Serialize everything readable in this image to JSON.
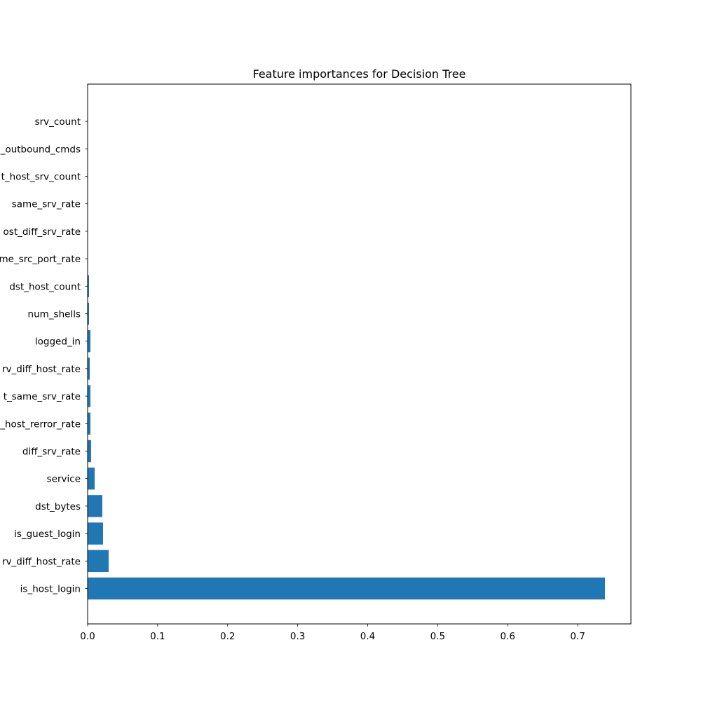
{
  "chart_data": {
    "type": "bar",
    "orientation": "horizontal",
    "title": "Feature importances for Decision Tree",
    "xlabel": "",
    "ylabel": "",
    "xlim": [
      0,
      0.776
    ],
    "xticks": [
      "0.0",
      "0.1",
      "0.2",
      "0.3",
      "0.4",
      "0.5",
      "0.6",
      "0.7"
    ],
    "grid": false,
    "bar_color": "#1f77b4",
    "categories": [
      "is_host_login",
      "srv_diff_host_rate",
      "is_guest_login",
      "dst_bytes",
      "service",
      "diff_srv_rate",
      "dst_host_rerror_rate",
      "dst_host_same_srv_rate",
      "dst_host_srv_diff_host_rate",
      "logged_in",
      "num_shells",
      "dst_host_count",
      "dst_host_same_src_port_rate",
      "dst_host_diff_srv_rate",
      "same_srv_rate",
      "dst_host_srv_count",
      "num_outbound_cmds",
      "srv_count"
    ],
    "display_labels": [
      "is_host_login",
      "rv_diff_host_rate",
      "is_guest_login",
      "dst_bytes",
      "service",
      "diff_srv_rate",
      "_host_rerror_rate",
      "t_same_srv_rate",
      "rv_diff_host_rate",
      "logged_in",
      "num_shells",
      "dst_host_count",
      "me_src_port_rate",
      "ost_diff_srv_rate",
      "same_srv_rate",
      "t_host_srv_count",
      "_outbound_cmds",
      "srv_count"
    ],
    "values": [
      0.739,
      0.03,
      0.022,
      0.021,
      0.01,
      0.005,
      0.004,
      0.004,
      0.003,
      0.004,
      0.002,
      0.002,
      0.0005,
      0.0004,
      0.0003,
      0.0002,
      0.0,
      0.0
    ]
  }
}
